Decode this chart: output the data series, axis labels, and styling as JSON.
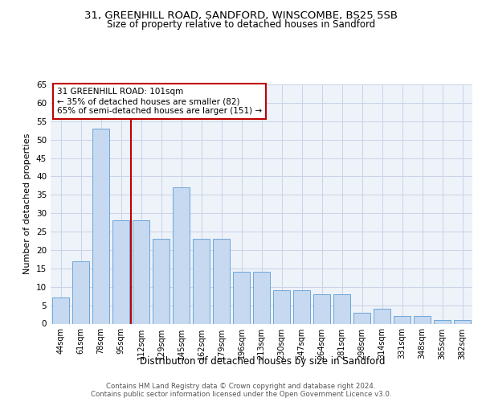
{
  "title1": "31, GREENHILL ROAD, SANDFORD, WINSCOMBE, BS25 5SB",
  "title2": "Size of property relative to detached houses in Sandford",
  "xlabel": "Distribution of detached houses by size in Sandford",
  "ylabel": "Number of detached properties",
  "categories": [
    "44sqm",
    "61sqm",
    "78sqm",
    "95sqm",
    "112sqm",
    "129sqm",
    "145sqm",
    "162sqm",
    "179sqm",
    "196sqm",
    "213sqm",
    "230sqm",
    "247sqm",
    "264sqm",
    "281sqm",
    "298sqm",
    "314sqm",
    "331sqm",
    "348sqm",
    "365sqm",
    "382sqm"
  ],
  "values": [
    7,
    17,
    53,
    28,
    28,
    23,
    37,
    23,
    23,
    14,
    14,
    9,
    9,
    8,
    8,
    3,
    4,
    2,
    2,
    1,
    1
  ],
  "bar_color": "#c6d9f0",
  "bar_edge_color": "#5b9bd5",
  "vline_x": 3.5,
  "vline_color": "#c00000",
  "annotation_text": "31 GREENHILL ROAD: 101sqm\n← 35% of detached houses are smaller (82)\n65% of semi-detached houses are larger (151) →",
  "annotation_box_color": "#c00000",
  "ylim": [
    0,
    65
  ],
  "yticks": [
    0,
    5,
    10,
    15,
    20,
    25,
    30,
    35,
    40,
    45,
    50,
    55,
    60,
    65
  ],
  "footer": "Contains HM Land Registry data © Crown copyright and database right 2024.\nContains public sector information licensed under the Open Government Licence v3.0.",
  "bg_color": "#eef2f9",
  "grid_color": "#c8d4e8",
  "title1_fontsize": 9.5,
  "title2_fontsize": 8.5,
  "ann_fontsize": 7.5,
  "ylabel_fontsize": 8,
  "xlabel_fontsize": 8.5
}
